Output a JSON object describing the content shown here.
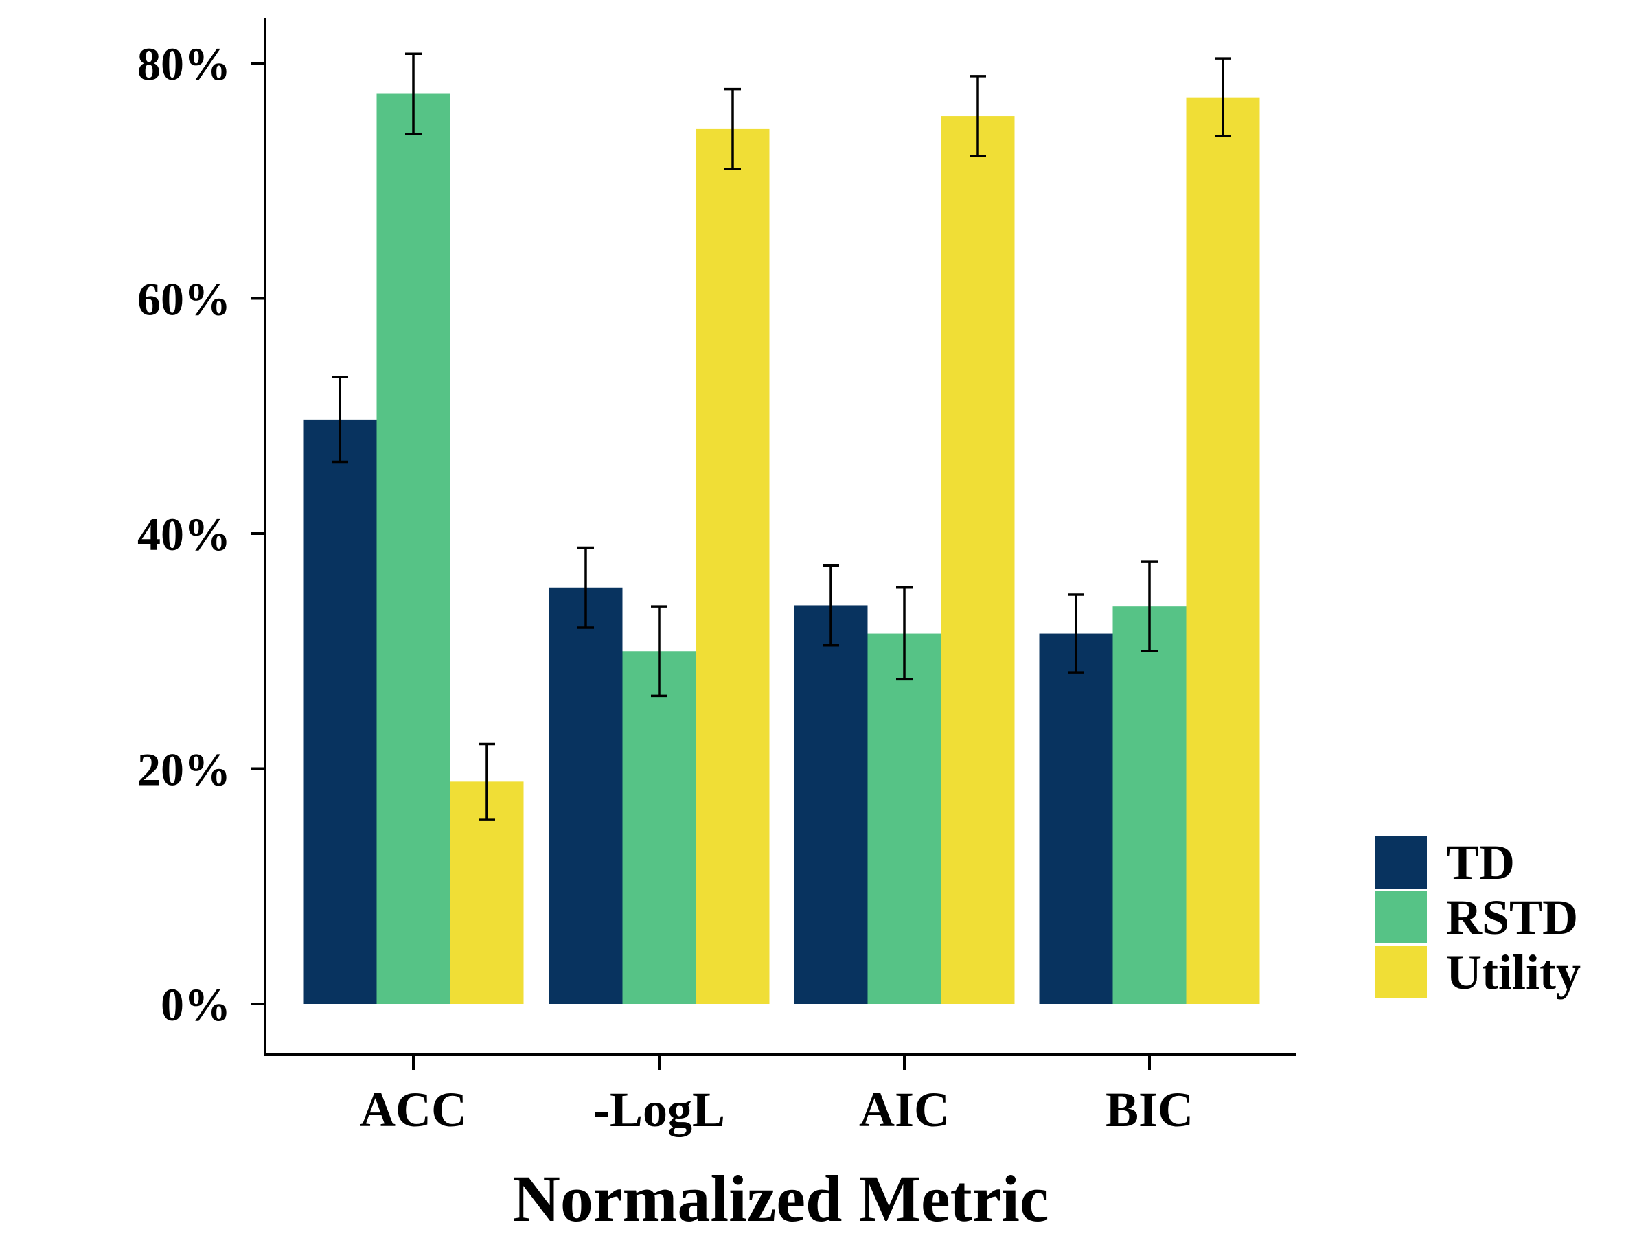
{
  "chart_data": {
    "type": "bar",
    "xlabel": "Normalized Metric",
    "ylabel": "",
    "ylim": [
      0,
      0.84
    ],
    "y_ticks": [
      0,
      0.2,
      0.4,
      0.6,
      0.8
    ],
    "y_tick_labels": [
      "0%",
      "20%",
      "40%",
      "60%",
      "80%"
    ],
    "categories": [
      "ACC",
      "-LogL",
      "AIC",
      "BIC"
    ],
    "grid": false,
    "legend_position": "right",
    "series": [
      {
        "name": "TD",
        "color": "#08335f",
        "values": [
          0.497,
          0.354,
          0.339,
          0.315
        ],
        "error": [
          0.036,
          0.034,
          0.034,
          0.033
        ]
      },
      {
        "name": "RSTD",
        "color": "#56c386",
        "values": [
          0.774,
          0.3,
          0.315,
          0.338
        ],
        "error": [
          0.034,
          0.038,
          0.039,
          0.038
        ]
      },
      {
        "name": "Utility",
        "color": "#f0de36",
        "values": [
          0.189,
          0.744,
          0.755,
          0.771
        ],
        "error": [
          0.032,
          0.034,
          0.034,
          0.033
        ]
      }
    ]
  }
}
